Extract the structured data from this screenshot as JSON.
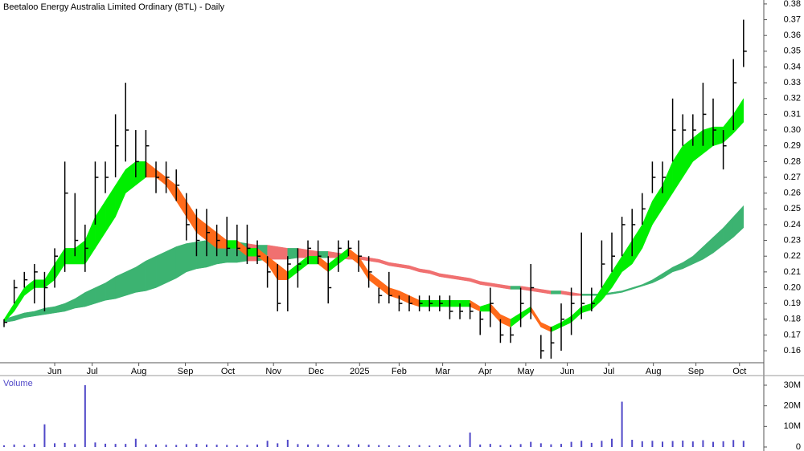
{
  "chart_data": [
    {
      "type": "ohlc",
      "title": "Beetaloo Energy Australia Limited Ordinary (BTL) - Daily",
      "color": "#000000",
      "xlim": [
        -0.4,
        75
      ],
      "xticks": [
        {
          "value": 5.0,
          "label": "Jun"
        },
        {
          "value": 8.7,
          "label": "Jul"
        },
        {
          "value": 13.3,
          "label": "Aug"
        },
        {
          "value": 17.9,
          "label": "Sep"
        },
        {
          "value": 22.1,
          "label": "Oct"
        },
        {
          "value": 26.6,
          "label": "Nov"
        },
        {
          "value": 30.8,
          "label": "Dec"
        },
        {
          "value": 35.1,
          "label": "2025"
        },
        {
          "value": 39.0,
          "label": "Feb"
        },
        {
          "value": 43.3,
          "label": "Mar"
        },
        {
          "value": 47.5,
          "label": "Apr"
        },
        {
          "value": 51.5,
          "label": "May"
        },
        {
          "value": 55.6,
          "label": "Jun"
        },
        {
          "value": 59.7,
          "label": "Jul"
        },
        {
          "value": 64.1,
          "label": "Aug"
        },
        {
          "value": 68.3,
          "label": "Sep"
        },
        {
          "value": 72.6,
          "label": "Oct"
        }
      ],
      "ylim": [
        0.1524,
        0.3825
      ],
      "yticks": [
        0.16,
        0.17,
        0.18,
        0.19,
        {
          "value": 0.2,
          "label": "0.20"
        },
        0.21,
        0.22,
        0.23,
        0.24,
        0.25,
        0.26,
        0.27,
        0.28,
        0.29,
        {
          "value": 0.3,
          "label": "0.30"
        },
        0.31,
        0.32,
        0.33,
        0.34,
        0.35,
        0.36,
        0.37,
        0.38
      ],
      "high": [
        0.18,
        0.205,
        0.21,
        0.215,
        0.21,
        0.225,
        0.28,
        0.26,
        0.24,
        0.28,
        0.28,
        0.31,
        0.33,
        0.3,
        0.3,
        0.28,
        0.28,
        0.275,
        0.26,
        0.25,
        0.25,
        0.24,
        0.245,
        0.24,
        0.24,
        0.23,
        0.22,
        0.215,
        0.22,
        0.225,
        0.23,
        0.23,
        0.22,
        0.23,
        0.23,
        0.23,
        0.22,
        0.2,
        0.21,
        0.195,
        0.195,
        0.195,
        0.195,
        0.195,
        0.195,
        0.19,
        0.19,
        0.185,
        0.2,
        0.18,
        0.175,
        0.2,
        0.215,
        0.17,
        0.175,
        0.19,
        0.2,
        0.235,
        0.2,
        0.23,
        0.235,
        0.245,
        0.25,
        0.26,
        0.28,
        0.28,
        0.32,
        0.31,
        0.31,
        0.33,
        0.32,
        0.3,
        0.345,
        0.37
      ],
      "low": [
        0.175,
        0.19,
        0.2,
        0.19,
        0.185,
        0.2,
        0.21,
        0.22,
        0.21,
        0.24,
        0.26,
        0.27,
        0.28,
        0.27,
        0.27,
        0.26,
        0.26,
        0.255,
        0.23,
        0.22,
        0.22,
        0.22,
        0.22,
        0.22,
        0.215,
        0.215,
        0.2,
        0.185,
        0.185,
        0.2,
        0.215,
        0.215,
        0.19,
        0.21,
        0.22,
        0.21,
        0.2,
        0.19,
        0.19,
        0.185,
        0.185,
        0.185,
        0.185,
        0.185,
        0.18,
        0.18,
        0.18,
        0.17,
        0.175,
        0.165,
        0.165,
        0.175,
        0.18,
        0.155,
        0.155,
        0.16,
        0.17,
        0.18,
        0.185,
        0.2,
        0.21,
        0.22,
        0.22,
        0.24,
        0.26,
        0.26,
        0.28,
        0.29,
        0.29,
        0.29,
        0.29,
        0.275,
        0.3,
        0.34
      ],
      "close": [
        0.178,
        0.2,
        0.205,
        0.21,
        0.2,
        0.22,
        0.26,
        0.23,
        0.225,
        0.27,
        0.27,
        0.29,
        0.3,
        0.28,
        0.29,
        0.27,
        0.27,
        0.265,
        0.24,
        0.23,
        0.235,
        0.23,
        0.225,
        0.225,
        0.225,
        0.22,
        0.21,
        0.19,
        0.215,
        0.215,
        0.225,
        0.22,
        0.2,
        0.225,
        0.225,
        0.22,
        0.21,
        0.195,
        0.195,
        0.19,
        0.19,
        0.19,
        0.19,
        0.19,
        0.185,
        0.185,
        0.185,
        0.18,
        0.19,
        0.17,
        0.17,
        0.19,
        0.2,
        0.16,
        0.165,
        0.18,
        0.19,
        0.19,
        0.19,
        0.215,
        0.22,
        0.24,
        0.24,
        0.25,
        0.27,
        0.27,
        0.3,
        0.3,
        0.3,
        0.31,
        0.3,
        0.29,
        0.33,
        0.35
      ],
      "bands": [
        {
          "up_color": "#3cb371",
          "down_color": "#f07070",
          "upper": [
            0.18,
            0.182,
            0.184,
            0.185,
            0.187,
            0.188,
            0.19,
            0.193,
            0.197,
            0.2,
            0.203,
            0.207,
            0.21,
            0.213,
            0.217,
            0.22,
            0.223,
            0.226,
            0.228,
            0.229,
            0.23,
            0.23,
            0.229,
            0.229,
            0.228,
            0.227,
            0.227,
            0.226,
            0.225,
            0.225,
            0.224,
            0.223,
            0.223,
            0.222,
            0.221,
            0.22,
            0.219,
            0.218,
            0.216,
            0.215,
            0.214,
            0.212,
            0.211,
            0.209,
            0.208,
            0.207,
            0.206,
            0.204,
            0.203,
            0.202,
            0.201,
            0.201,
            0.2,
            0.199,
            0.198,
            0.198,
            0.197,
            0.196,
            0.196,
            0.196,
            0.197,
            0.198,
            0.2,
            0.202,
            0.205,
            0.209,
            0.213,
            0.216,
            0.22,
            0.226,
            0.232,
            0.238,
            0.245,
            0.252
          ],
          "lower": [
            0.178,
            0.179,
            0.181,
            0.182,
            0.183,
            0.184,
            0.185,
            0.187,
            0.188,
            0.19,
            0.192,
            0.193,
            0.195,
            0.197,
            0.198,
            0.2,
            0.203,
            0.206,
            0.21,
            0.212,
            0.213,
            0.215,
            0.216,
            0.216,
            0.217,
            0.217,
            0.218,
            0.218,
            0.218,
            0.219,
            0.219,
            0.219,
            0.219,
            0.219,
            0.218,
            0.218,
            0.217,
            0.216,
            0.214,
            0.213,
            0.212,
            0.21,
            0.209,
            0.207,
            0.206,
            0.205,
            0.204,
            0.202,
            0.201,
            0.2,
            0.199,
            0.199,
            0.198,
            0.197,
            0.196,
            0.196,
            0.195,
            0.195,
            0.195,
            0.195,
            0.196,
            0.197,
            0.199,
            0.201,
            0.203,
            0.206,
            0.21,
            0.212,
            0.215,
            0.218,
            0.222,
            0.227,
            0.232,
            0.238
          ]
        },
        {
          "up_color": "#00ee00",
          "down_color": "#ff6a1a",
          "upper": [
            0.18,
            0.19,
            0.2,
            0.205,
            0.205,
            0.215,
            0.225,
            0.225,
            0.23,
            0.245,
            0.255,
            0.265,
            0.275,
            0.28,
            0.28,
            0.275,
            0.27,
            0.265,
            0.255,
            0.245,
            0.24,
            0.235,
            0.23,
            0.23,
            0.225,
            0.225,
            0.22,
            0.215,
            0.21,
            0.215,
            0.22,
            0.22,
            0.215,
            0.22,
            0.225,
            0.22,
            0.21,
            0.205,
            0.2,
            0.198,
            0.195,
            0.192,
            0.192,
            0.192,
            0.192,
            0.192,
            0.192,
            0.188,
            0.19,
            0.183,
            0.18,
            0.184,
            0.188,
            0.178,
            0.175,
            0.178,
            0.182,
            0.188,
            0.19,
            0.2,
            0.21,
            0.22,
            0.23,
            0.24,
            0.255,
            0.265,
            0.28,
            0.29,
            0.295,
            0.3,
            0.302,
            0.302,
            0.31,
            0.32
          ],
          "lower": [
            0.178,
            0.185,
            0.195,
            0.2,
            0.2,
            0.205,
            0.215,
            0.215,
            0.215,
            0.225,
            0.235,
            0.245,
            0.26,
            0.265,
            0.27,
            0.27,
            0.265,
            0.255,
            0.245,
            0.235,
            0.23,
            0.225,
            0.225,
            0.225,
            0.22,
            0.22,
            0.215,
            0.205,
            0.205,
            0.21,
            0.215,
            0.215,
            0.21,
            0.215,
            0.22,
            0.215,
            0.205,
            0.2,
            0.195,
            0.193,
            0.19,
            0.188,
            0.188,
            0.188,
            0.188,
            0.188,
            0.188,
            0.185,
            0.185,
            0.178,
            0.175,
            0.18,
            0.185,
            0.175,
            0.172,
            0.175,
            0.178,
            0.184,
            0.186,
            0.192,
            0.2,
            0.21,
            0.215,
            0.225,
            0.24,
            0.25,
            0.26,
            0.27,
            0.28,
            0.285,
            0.29,
            0.292,
            0.298,
            0.305
          ]
        }
      ]
    },
    {
      "type": "bar",
      "title": "Volume",
      "color": "#5048c8",
      "xlim": [
        -0.4,
        75
      ],
      "ylim": [
        0,
        33900000
      ],
      "yticks": [
        0,
        {
          "value": 10000000,
          "label": "10M"
        },
        {
          "value": 20000000,
          "label": "20M"
        },
        {
          "value": 30000000,
          "label": "30M"
        }
      ],
      "values": [
        800000,
        1200000,
        900000,
        1500000,
        11000000,
        1800000,
        2000000,
        1400000,
        30000000,
        2200000,
        1600000,
        1500000,
        1500000,
        4000000,
        1300000,
        1200000,
        1100000,
        1000000,
        1300000,
        1500000,
        1200000,
        1100000,
        1000000,
        900000,
        1000000,
        1200000,
        3000000,
        1800000,
        3500000,
        1400000,
        1200000,
        1300000,
        1100000,
        1000000,
        1200000,
        1300000,
        1100000,
        900000,
        800000,
        700000,
        800000,
        900000,
        700000,
        800000,
        900000,
        1000000,
        7000000,
        1200000,
        1500000,
        900000,
        1000000,
        1400000,
        2500000,
        1800000,
        1300000,
        1500000,
        2500000,
        3000000,
        2000000,
        3000000,
        4000000,
        22000000,
        3500000,
        2800000,
        3000000,
        2600000,
        2900000,
        3100000,
        2700000,
        3300000,
        2500000,
        2800000,
        3400000,
        3000000
      ]
    }
  ]
}
